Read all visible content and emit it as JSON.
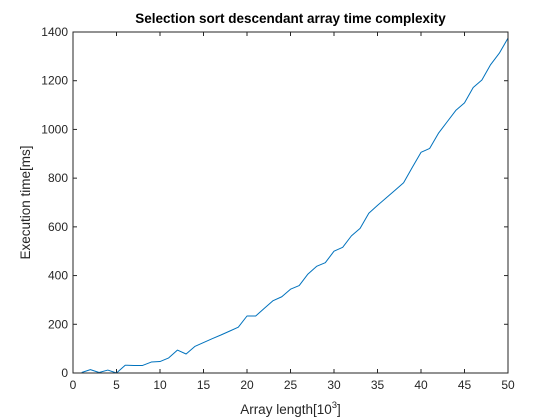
{
  "chart_data": {
    "type": "line",
    "title": "Selection sort descendant array time complexity",
    "xlabel_base": "Array length[10",
    "xlabel_exponent": "3",
    "xlabel_suffix": "]",
    "ylabel": "Execution time[ms]",
    "xlim": [
      0,
      50
    ],
    "ylim": [
      0,
      1400
    ],
    "xticks": [
      0,
      5,
      10,
      15,
      20,
      25,
      30,
      35,
      40,
      45,
      50
    ],
    "yticks": [
      0,
      200,
      400,
      600,
      800,
      1000,
      1200,
      1400
    ],
    "grid": false,
    "legend": "none",
    "line_color": "#0072BD",
    "series": [
      {
        "x": [
          1,
          2,
          3,
          4,
          5,
          6,
          7,
          8,
          9,
          10,
          11,
          12,
          13,
          14,
          15,
          16,
          17,
          18,
          19,
          20,
          21,
          22,
          23,
          24,
          25,
          26,
          27,
          28,
          29,
          30,
          31,
          32,
          33,
          34,
          35,
          36,
          37,
          38,
          39,
          40,
          41,
          42,
          43,
          44,
          45,
          46,
          47,
          48,
          49,
          50
        ],
        "values": [
          2,
          14,
          2,
          12,
          0,
          32,
          31,
          31,
          45,
          47,
          62,
          94,
          78,
          109,
          125,
          141,
          156,
          172,
          188,
          234,
          234,
          266,
          297,
          313,
          344,
          359,
          406,
          438,
          453,
          500,
          516,
          563,
          594,
          656,
          688,
          719,
          750,
          781,
          844,
          906,
          922,
          984,
          1031,
          1078,
          1109,
          1172,
          1203,
          1266,
          1313,
          1375
        ]
      }
    ]
  }
}
